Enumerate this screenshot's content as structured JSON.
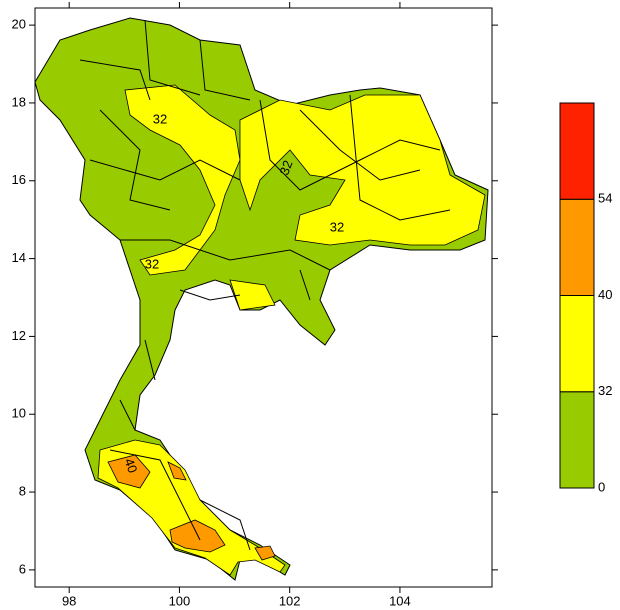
{
  "map": {
    "xlim": [
      97.38,
      105.67
    ],
    "ylim": [
      5.56,
      20.44
    ],
    "xticks": [
      98,
      100,
      102,
      104
    ],
    "yticks": [
      6,
      8,
      10,
      12,
      14,
      16,
      18,
      20
    ],
    "colorbar": {
      "levels": [
        0,
        32,
        40,
        54
      ],
      "colors": [
        "#99cc00",
        "#ffff00",
        "#ff9900",
        "#ff2200"
      ]
    },
    "contour_labels": [
      "32",
      "32",
      "32",
      "32",
      "40"
    ]
  }
}
